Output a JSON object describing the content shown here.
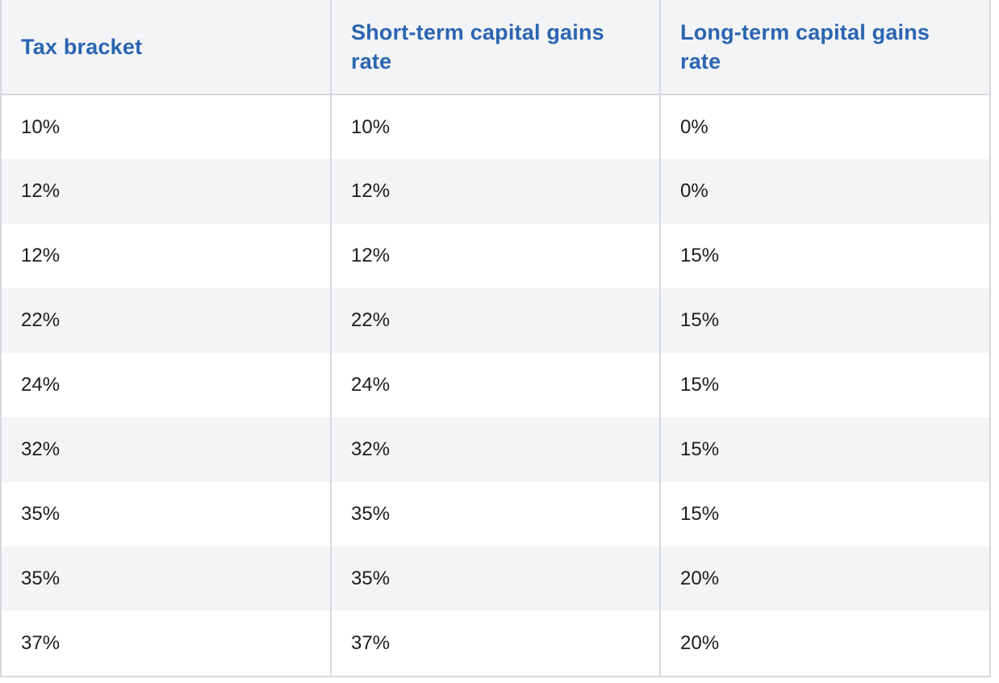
{
  "table": {
    "headers": [
      "Tax bracket",
      "Short-term capital gains rate",
      "Long-term capital gains rate"
    ],
    "rows": [
      [
        "10%",
        "10%",
        "0%"
      ],
      [
        "12%",
        "12%",
        "0%"
      ],
      [
        "12%",
        "12%",
        "15%"
      ],
      [
        "22%",
        "22%",
        "15%"
      ],
      [
        "24%",
        "24%",
        "15%"
      ],
      [
        "32%",
        "32%",
        "15%"
      ],
      [
        "35%",
        "35%",
        "15%"
      ],
      [
        "35%",
        "35%",
        "20%"
      ],
      [
        "37%",
        "37%",
        "20%"
      ]
    ]
  },
  "colors": {
    "header_text": "#2a65b1",
    "header_background": "#f3f4f6",
    "stripe_background": "#f3f4f6",
    "border": "#d5d8dc",
    "body_text": "#1c1c1c"
  }
}
